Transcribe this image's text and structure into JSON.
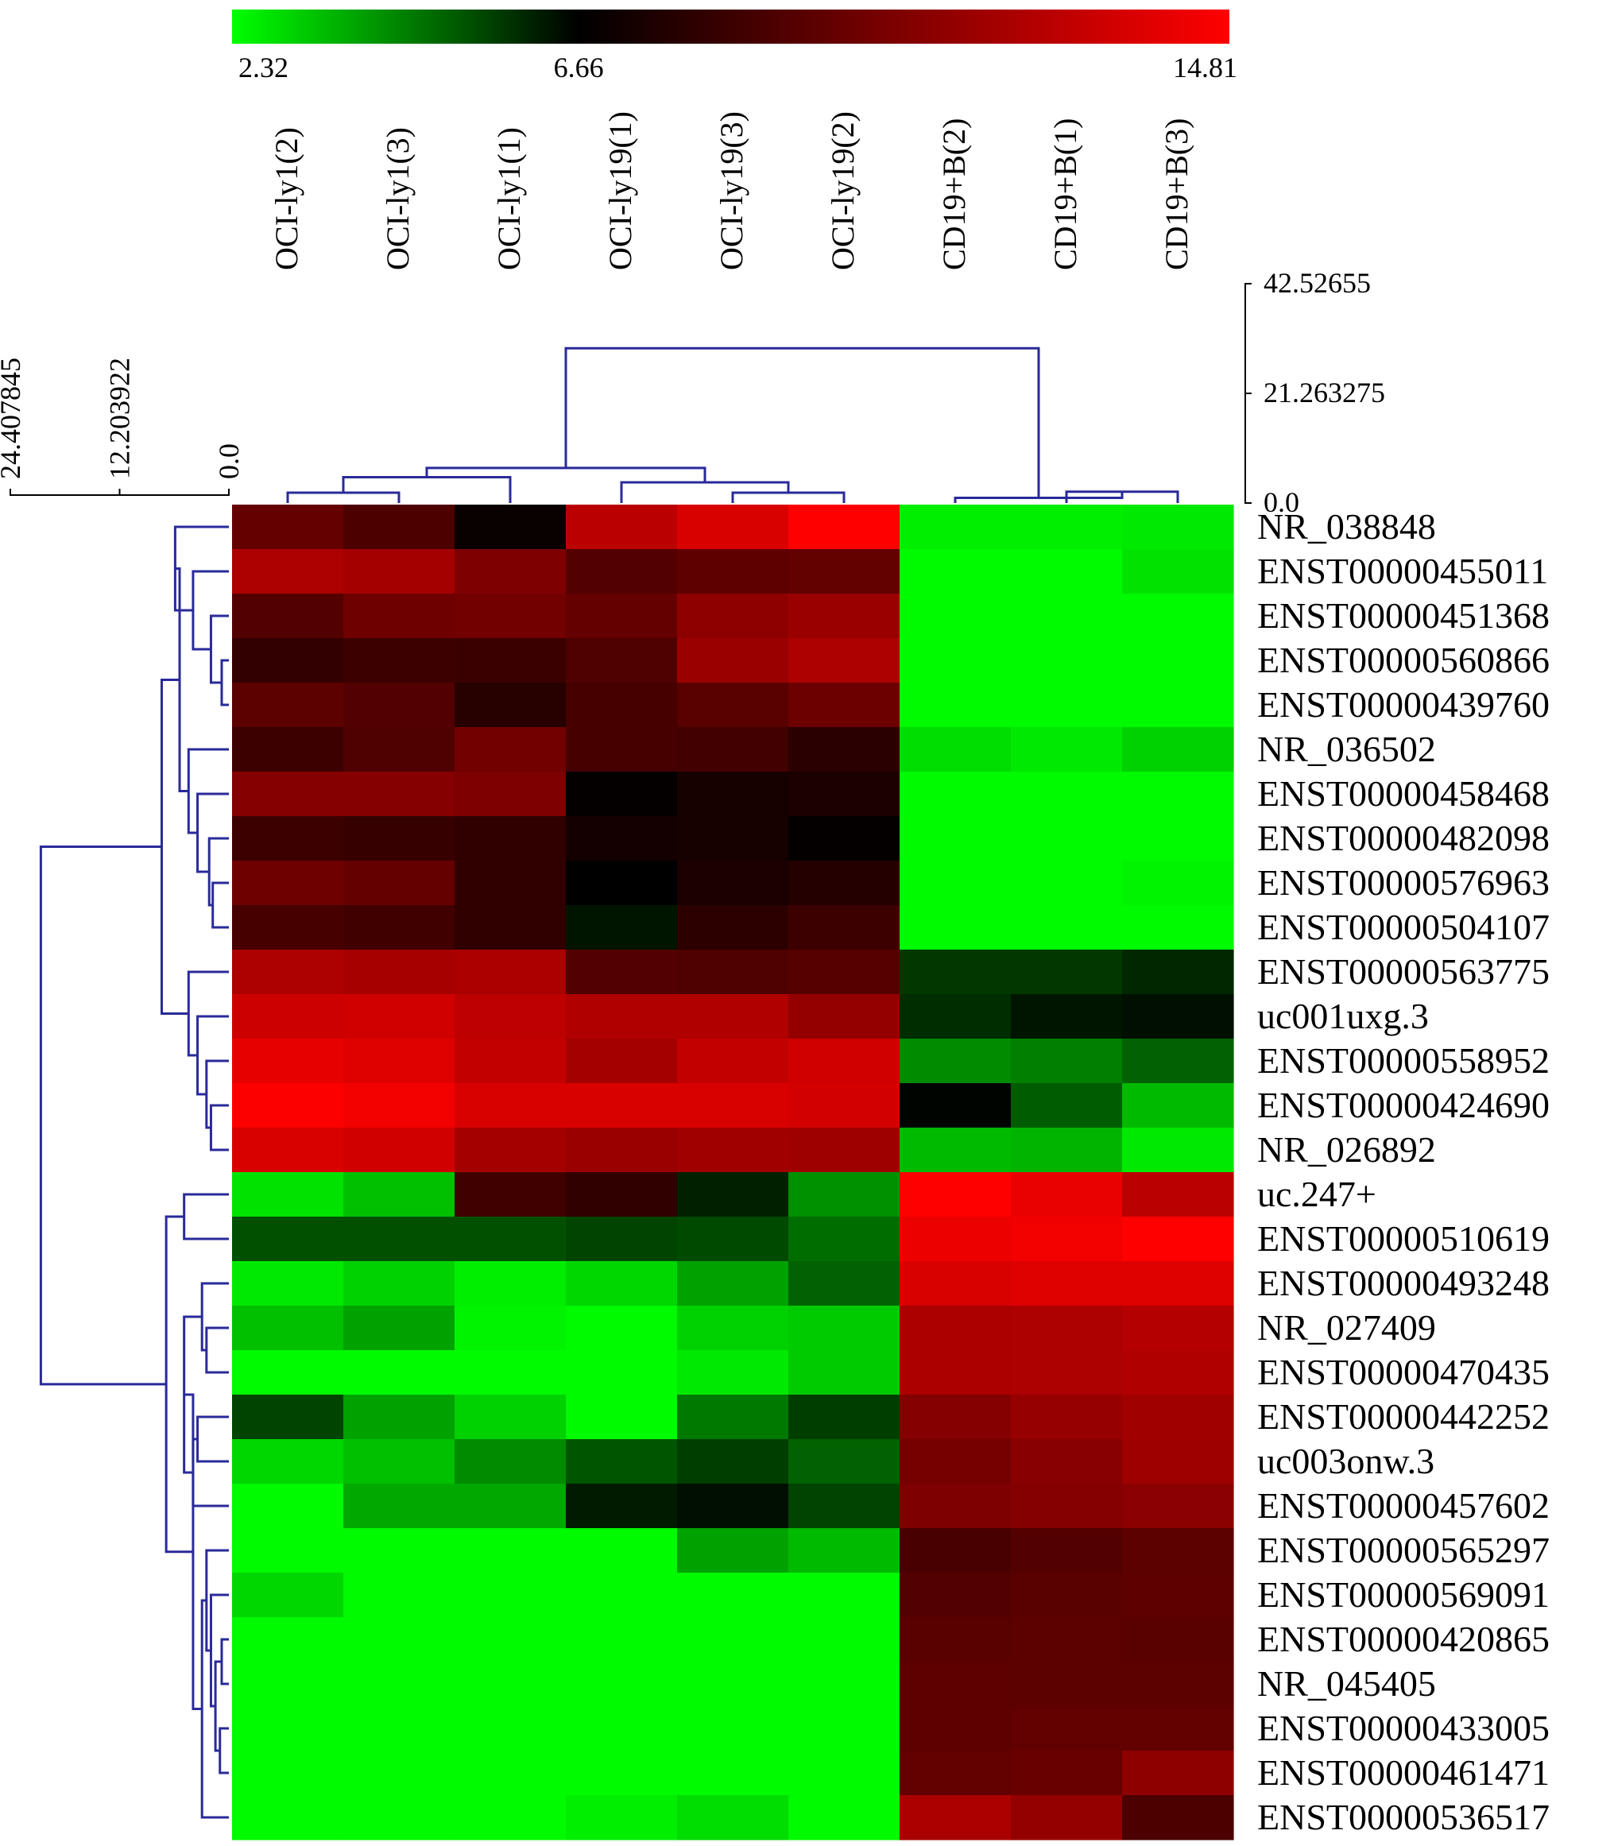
{
  "chart_data": {
    "type": "heatmap",
    "colorbar": {
      "min": 2.32,
      "mid": 6.66,
      "max": 14.81,
      "tick_labels": [
        "2.32",
        "6.66",
        "14.81"
      ],
      "low_color": "#00ff00",
      "mid_color": "#000000",
      "high_color": "#ff0000"
    },
    "columns": [
      "OCI-ly1(2)",
      "OCI-ly1(3)",
      "OCI-ly1(1)",
      "OCI-ly19(1)",
      "OCI-ly19(3)",
      "OCI-ly19(2)",
      "CD19+B(2)",
      "CD19+B(1)",
      "CD19+B(3)"
    ],
    "rows": [
      "NR_038848",
      "ENST00000455011",
      "ENST00000451368",
      "ENST00000560866",
      "ENST00000439760",
      "NR_036502",
      "ENST00000458468",
      "ENST00000482098",
      "ENST00000576963",
      "ENST00000504107",
      "ENST00000563775",
      "uc001uxg.3",
      "ENST00000558952",
      "ENST00000424690",
      "NR_026892",
      "uc.247+",
      "ENST00000510619",
      "ENST00000493248",
      "NR_027409",
      "ENST00000470435",
      "ENST00000442252",
      "uc003onw.3",
      "ENST00000457602",
      "ENST00000565297",
      "ENST00000569091",
      "ENST00000420865",
      "NR_045405",
      "ENST00000433005",
      "ENST00000461471",
      "ENST00000536517"
    ],
    "values": [
      [
        9.9,
        9.1,
        6.9,
        12.6,
        13.6,
        14.8,
        2.6,
        2.6,
        2.7
      ],
      [
        12.2,
        11.9,
        10.7,
        9.3,
        9.7,
        9.8,
        2.4,
        2.4,
        2.8
      ],
      [
        9.3,
        10.2,
        10.3,
        9.9,
        11.2,
        11.6,
        2.4,
        2.4,
        2.4
      ],
      [
        8.3,
        8.6,
        8.5,
        9.2,
        11.6,
        12.2,
        2.4,
        2.4,
        2.4
      ],
      [
        9.6,
        9.3,
        7.9,
        8.9,
        9.5,
        10.1,
        2.4,
        2.4,
        2.4
      ],
      [
        8.6,
        9.2,
        10.3,
        8.9,
        8.8,
        8.0,
        2.9,
        2.7,
        3.1
      ],
      [
        10.9,
        10.9,
        10.7,
        6.8,
        7.4,
        7.5,
        2.4,
        2.4,
        2.4
      ],
      [
        8.6,
        8.4,
        8.2,
        7.3,
        7.4,
        6.8,
        2.4,
        2.4,
        2.4
      ],
      [
        10.2,
        9.9,
        8.2,
        6.7,
        7.5,
        7.8,
        2.4,
        2.4,
        2.5
      ],
      [
        8.9,
        8.7,
        8.2,
        6.3,
        8.1,
        8.6,
        2.4,
        2.4,
        2.4
      ],
      [
        12.2,
        12.0,
        12.1,
        9.3,
        9.2,
        9.4,
        5.7,
        5.7,
        6.0
      ],
      [
        13.2,
        13.3,
        12.7,
        12.3,
        12.3,
        11.4,
        5.9,
        6.3,
        6.4
      ],
      [
        14.0,
        13.8,
        12.9,
        11.9,
        12.9,
        13.3,
        4.3,
        4.5,
        5.0
      ],
      [
        14.7,
        14.4,
        13.6,
        13.6,
        13.6,
        13.4,
        6.6,
        5.1,
        3.5
      ],
      [
        13.6,
        13.3,
        11.9,
        11.6,
        11.8,
        11.7,
        3.5,
        3.6,
        2.7
      ],
      [
        2.8,
        3.4,
        8.7,
        8.2,
        6.1,
        4.2,
        14.8,
        14.1,
        12.6
      ],
      [
        5.3,
        5.3,
        5.3,
        5.5,
        5.4,
        4.8,
        14.2,
        14.4,
        14.8
      ],
      [
        2.7,
        3.1,
        2.6,
        3.0,
        3.9,
        5.0,
        13.6,
        13.8,
        13.8
      ],
      [
        3.4,
        3.9,
        2.5,
        2.4,
        3.1,
        3.2,
        12.1,
        12.2,
        12.4
      ],
      [
        2.4,
        2.4,
        2.4,
        2.4,
        2.7,
        3.2,
        12.1,
        12.2,
        12.3
      ],
      [
        5.5,
        3.9,
        3.1,
        2.4,
        4.6,
        5.6,
        10.9,
        11.5,
        11.8
      ],
      [
        3.0,
        3.4,
        4.3,
        5.2,
        5.6,
        5.0,
        10.4,
        11.0,
        11.7
      ],
      [
        2.4,
        3.8,
        3.8,
        6.2,
        6.4,
        5.5,
        10.7,
        10.9,
        11.1
      ],
      [
        2.4,
        2.4,
        2.4,
        2.4,
        3.9,
        3.5,
        9.0,
        9.3,
        9.6
      ],
      [
        3.0,
        2.4,
        2.4,
        2.4,
        2.4,
        2.4,
        9.3,
        9.5,
        9.7
      ],
      [
        2.4,
        2.4,
        2.4,
        2.4,
        2.4,
        2.4,
        9.5,
        9.6,
        9.5
      ],
      [
        2.4,
        2.4,
        2.4,
        2.4,
        2.4,
        2.4,
        9.7,
        9.6,
        9.6
      ],
      [
        2.4,
        2.4,
        2.4,
        2.4,
        2.4,
        2.4,
        9.7,
        9.8,
        9.8
      ],
      [
        2.4,
        2.4,
        2.4,
        2.4,
        2.4,
        2.4,
        9.8,
        10.0,
        11.2
      ],
      [
        2.4,
        2.4,
        2.4,
        2.6,
        2.9,
        2.4,
        12.1,
        11.4,
        9.1
      ]
    ],
    "column_dendrogram": {
      "scale_ticks": [
        "42.52655",
        "21.263275",
        "0.0"
      ],
      "range": [
        0,
        42.52655
      ],
      "leaf_order": [
        "OCI-ly1(2)",
        "OCI-ly1(3)",
        "OCI-ly1(1)",
        "OCI-ly19(1)",
        "OCI-ly19(3)",
        "OCI-ly19(2)",
        "CD19+B(2)",
        "CD19+B(1)",
        "CD19+B(3)"
      ],
      "merges": [
        {
          "a": 0,
          "b": 1,
          "h": 2.0
        },
        {
          "a": 9,
          "b": 2,
          "h": 5.0
        },
        {
          "a": 4,
          "b": 5,
          "h": 2.0
        },
        {
          "a": 3,
          "b": 11,
          "h": 4.0
        },
        {
          "a": 10,
          "b": 12,
          "h": 6.8
        },
        {
          "a": 7,
          "b": 8,
          "h": 2.2
        },
        {
          "a": 6,
          "b": 14,
          "h": 1.0
        },
        {
          "a": 13,
          "b": 15,
          "h": 30.0
        }
      ]
    },
    "row_dendrogram": {
      "scale_ticks": [
        "24.407845",
        "12.203922",
        "0.0"
      ],
      "range": [
        0,
        24.407845
      ],
      "merges": [
        {
          "a": 3,
          "b": 4,
          "h": 0.8
        },
        {
          "a": 2,
          "b": 30,
          "h": 2.0
        },
        {
          "a": 1,
          "b": 31,
          "h": 4.0
        },
        {
          "a": 0,
          "b": 32,
          "h": 6.0
        },
        {
          "a": 8,
          "b": 9,
          "h": 1.8
        },
        {
          "a": 7,
          "b": 34,
          "h": 2.2
        },
        {
          "a": 6,
          "b": 35,
          "h": 3.5
        },
        {
          "a": 5,
          "b": 36,
          "h": 4.5
        },
        {
          "a": 33,
          "b": 37,
          "h": 5.5
        },
        {
          "a": 13,
          "b": 14,
          "h": 2.0
        },
        {
          "a": 12,
          "b": 39,
          "h": 2.5
        },
        {
          "a": 11,
          "b": 40,
          "h": 3.5
        },
        {
          "a": 10,
          "b": 41,
          "h": 4.5
        },
        {
          "a": 38,
          "b": 42,
          "h": 7.5
        },
        {
          "a": 15,
          "b": 16,
          "h": 5.0
        },
        {
          "a": 18,
          "b": 19,
          "h": 2.5
        },
        {
          "a": 17,
          "b": 45,
          "h": 3.0
        },
        {
          "a": 20,
          "b": 21,
          "h": 3.5
        },
        {
          "a": 47,
          "b": 22,
          "h": 4.0
        },
        {
          "a": 46,
          "b": 48,
          "h": 5.0
        },
        {
          "a": 25,
          "b": 26,
          "h": 0.8
        },
        {
          "a": 27,
          "b": 28,
          "h": 1.0
        },
        {
          "a": 50,
          "b": 51,
          "h": 1.5
        },
        {
          "a": 24,
          "b": 52,
          "h": 2.0
        },
        {
          "a": 23,
          "b": 53,
          "h": 2.5
        },
        {
          "a": 54,
          "b": 29,
          "h": 3.0
        },
        {
          "a": 49,
          "b": 55,
          "h": 4.0
        },
        {
          "a": 44,
          "b": 56,
          "h": 7.0
        },
        {
          "a": 43,
          "b": 57,
          "h": 21.0
        }
      ]
    }
  }
}
